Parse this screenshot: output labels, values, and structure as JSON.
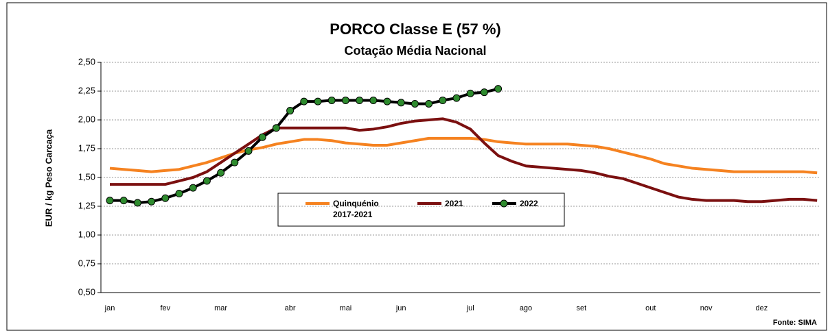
{
  "chart_data": {
    "type": "line",
    "title": "PORCO Classe E (57 %)",
    "subtitle": "Cotação Média Nacional",
    "y_label": "EUR / kg Peso Carcaça",
    "source": "Fonte: SIMA",
    "categories": [
      "jan",
      null,
      null,
      null,
      "fev",
      null,
      null,
      null,
      "mar",
      null,
      null,
      null,
      null,
      "abr",
      null,
      null,
      null,
      "mai",
      null,
      null,
      null,
      "jun",
      null,
      null,
      null,
      null,
      "jul",
      null,
      null,
      null,
      "ago",
      null,
      null,
      null,
      "set",
      null,
      null,
      null,
      null,
      "out",
      null,
      null,
      null,
      "nov",
      null,
      null,
      null,
      "dez",
      null,
      null,
      null,
      null
    ],
    "ylim": [
      0.5,
      2.5
    ],
    "yticks": [
      {
        "value": 0.5,
        "label": "0,50"
      },
      {
        "value": 0.75,
        "label": "0,75"
      },
      {
        "value": 1,
        "label": "1,00"
      },
      {
        "value": 1.25,
        "label": "1,25"
      },
      {
        "value": 1.5,
        "label": "1,50"
      },
      {
        "value": 1.75,
        "label": "1,75"
      },
      {
        "value": 2,
        "label": "2,00"
      },
      {
        "value": 2.25,
        "label": "2,25"
      },
      {
        "value": 2.5,
        "label": "2,50"
      }
    ],
    "grid": true,
    "series": [
      {
        "name": "Quinquénio 2017-2021",
        "color": "#f58220",
        "values": [
          1.58,
          1.57,
          1.56,
          1.55,
          1.56,
          1.57,
          1.6,
          1.63,
          1.67,
          1.71,
          1.74,
          1.76,
          1.79,
          1.81,
          1.83,
          1.83,
          1.82,
          1.8,
          1.79,
          1.78,
          1.78,
          1.8,
          1.82,
          1.84,
          1.84,
          1.84,
          1.84,
          1.83,
          1.81,
          1.8,
          1.79,
          1.79,
          1.79,
          1.79,
          1.78,
          1.77,
          1.75,
          1.72,
          1.69,
          1.66,
          1.62,
          1.6,
          1.58,
          1.57,
          1.56,
          1.55,
          1.55,
          1.55,
          1.55,
          1.55,
          1.55,
          1.54
        ]
      },
      {
        "name": "2021",
        "color": "#7b1010",
        "values": [
          1.44,
          1.44,
          1.44,
          1.44,
          1.44,
          1.47,
          1.5,
          1.55,
          1.63,
          1.71,
          1.79,
          1.87,
          1.93,
          1.93,
          1.93,
          1.93,
          1.93,
          1.93,
          1.91,
          1.92,
          1.94,
          1.97,
          1.99,
          2.0,
          2.01,
          1.98,
          1.92,
          1.8,
          1.69,
          1.64,
          1.6,
          1.59,
          1.58,
          1.57,
          1.56,
          1.54,
          1.51,
          1.49,
          1.45,
          1.41,
          1.37,
          1.33,
          1.31,
          1.3,
          1.3,
          1.3,
          1.29,
          1.29,
          1.3,
          1.31,
          1.31,
          1.3
        ]
      },
      {
        "name": "2022",
        "color": "#000000",
        "marker_color": "#2e8b2e",
        "values": [
          1.3,
          1.3,
          1.28,
          1.29,
          1.32,
          1.36,
          1.41,
          1.47,
          1.54,
          1.63,
          1.73,
          1.85,
          1.93,
          2.08,
          2.16,
          2.16,
          2.17,
          2.17,
          2.17,
          2.17,
          2.16,
          2.15,
          2.14,
          2.14,
          2.17,
          2.19,
          2.23,
          2.24,
          2.27,
          null,
          null,
          null,
          null,
          null,
          null,
          null,
          null,
          null,
          null,
          null,
          null,
          null,
          null,
          null,
          null,
          null,
          null,
          null,
          null,
          null,
          null,
          null
        ]
      }
    ]
  }
}
